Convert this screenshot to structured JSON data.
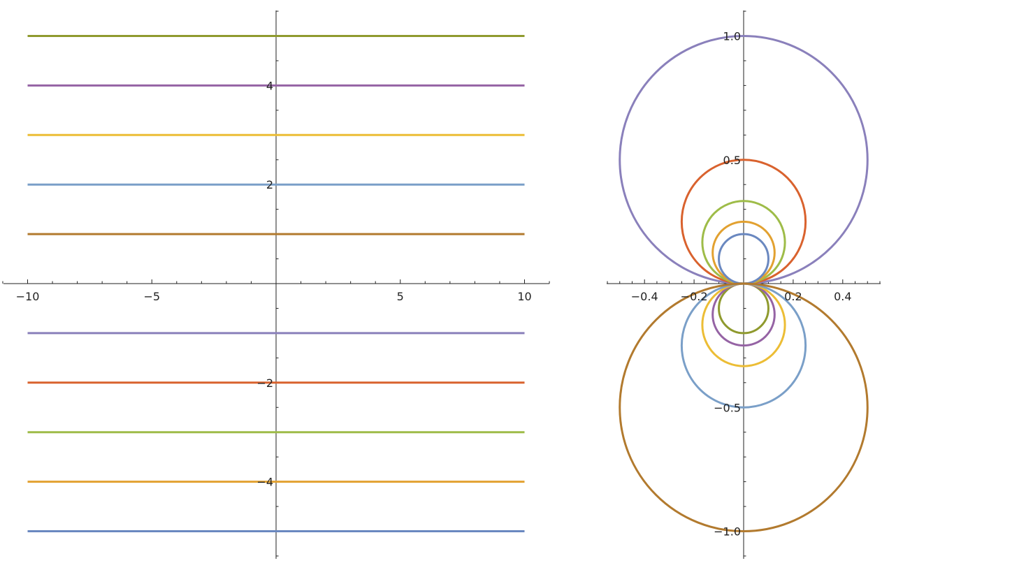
{
  "chart_data": [
    {
      "type": "line",
      "title": "",
      "xlabel": "",
      "ylabel": "",
      "xlim": [
        -11,
        11
      ],
      "ylim": [
        -5.6,
        5.5
      ],
      "x_ticks": [
        -10,
        -5,
        5,
        10
      ],
      "x_tick_labels": [
        "−10",
        "−5",
        "5",
        "10"
      ],
      "y_ticks": [
        -4,
        -2,
        2,
        4
      ],
      "y_tick_labels": [
        "−4",
        "−2",
        "2",
        "4"
      ],
      "grid": false,
      "legend": "none",
      "series": [
        {
          "x": [
            -10,
            10
          ],
          "y": [
            5,
            5
          ],
          "color": "#8f9a2e"
        },
        {
          "x": [
            -10,
            10
          ],
          "y": [
            4,
            4
          ],
          "color": "#9563a4"
        },
        {
          "x": [
            -10,
            10
          ],
          "y": [
            3,
            3
          ],
          "color": "#ecbd35"
        },
        {
          "x": [
            -10,
            10
          ],
          "y": [
            2,
            2
          ],
          "color": "#7a9fc8"
        },
        {
          "x": [
            -10,
            10
          ],
          "y": [
            1,
            1
          ],
          "color": "#b27a2e"
        },
        {
          "x": [
            -10,
            10
          ],
          "y": [
            -1,
            -1
          ],
          "color": "#8a80bb"
        },
        {
          "x": [
            -10,
            10
          ],
          "y": [
            -2,
            -2
          ],
          "color": "#d9622e"
        },
        {
          "x": [
            -10,
            10
          ],
          "y": [
            -3,
            -3
          ],
          "color": "#9ebc48"
        },
        {
          "x": [
            -10,
            10
          ],
          "y": [
            -4,
            -4
          ],
          "color": "#e2a130"
        },
        {
          "x": [
            -10,
            10
          ],
          "y": [
            -5,
            -5
          ],
          "color": "#6a88c0"
        }
      ]
    },
    {
      "type": "line",
      "title": "",
      "xlabel": "",
      "ylabel": "",
      "xlim": [
        -0.56,
        0.56
      ],
      "ylim": [
        -1.11,
        1.11
      ],
      "x_ticks": [
        -0.4,
        -0.2,
        0.2,
        0.4
      ],
      "x_tick_labels": [
        "−0.4",
        "−0.2",
        "0.2",
        "0.4"
      ],
      "y_ticks": [
        -1.0,
        -0.5,
        0.5,
        1.0
      ],
      "y_tick_labels": [
        "−1.0",
        "−0.5",
        "0.5",
        "1.0"
      ],
      "grid": false,
      "legend": "none",
      "circles": [
        {
          "cx": 0,
          "cy": 0.5,
          "r": 0.5,
          "color": "#8a80bb"
        },
        {
          "cx": 0,
          "cy": 0.25,
          "r": 0.25,
          "color": "#d9622e"
        },
        {
          "cx": 0,
          "cy": 0.1667,
          "r": 0.1667,
          "color": "#9ebc48"
        },
        {
          "cx": 0,
          "cy": 0.125,
          "r": 0.125,
          "color": "#e2a130"
        },
        {
          "cx": 0,
          "cy": 0.1,
          "r": 0.1,
          "color": "#6a88c0"
        },
        {
          "cx": 0,
          "cy": -0.1,
          "r": 0.1,
          "color": "#8f9a2e"
        },
        {
          "cx": 0,
          "cy": -0.125,
          "r": 0.125,
          "color": "#9563a4"
        },
        {
          "cx": 0,
          "cy": -0.1667,
          "r": 0.1667,
          "color": "#ecbd35"
        },
        {
          "cx": 0,
          "cy": -0.25,
          "r": 0.25,
          "color": "#7a9fc8"
        },
        {
          "cx": 0,
          "cy": -0.5,
          "r": 0.5,
          "color": "#b27a2e"
        }
      ]
    }
  ]
}
